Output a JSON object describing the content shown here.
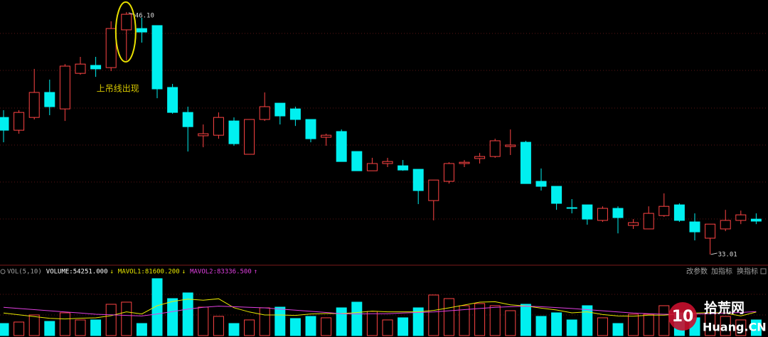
{
  "chart_data": [
    {
      "type": "candlestick",
      "open": [
        40.41,
        39.72,
        40.41,
        41.76,
        40.87,
        42.79,
        43.22,
        43.1,
        45.14,
        45.21,
        45.37,
        42.03,
        40.68,
        39.42,
        39.45,
        40.22,
        38.42,
        40.3,
        41.18,
        40.87,
        40.3,
        39.34,
        39.65,
        38.57,
        37.53,
        37.92,
        37.8,
        37.61,
        35.92,
        36.96,
        37.92,
        38.19,
        38.3,
        38.84,
        39.07,
        36.96,
        36.69,
        35.54,
        35.69,
        34.85,
        35.5,
        34.58,
        34.39,
        35.11,
        35.69,
        34.77,
        33.89,
        34.39,
        34.85,
        34.92
      ],
      "high": [
        40.8,
        40.8,
        43.03,
        42.45,
        43.29,
        43.68,
        43.68,
        45.6,
        46.1,
        45.79,
        45.37,
        42.22,
        40.99,
        40.03,
        40.68,
        40.41,
        40.3,
        41.76,
        41.18,
        40.99,
        40.3,
        39.53,
        39.76,
        38.57,
        38.23,
        38.23,
        38.11,
        37.61,
        37.03,
        37.99,
        38.11,
        38.49,
        39.26,
        39.76,
        39.15,
        37.65,
        36.69,
        36.0,
        35.69,
        35.61,
        35.61,
        34.92,
        35.61,
        36.31,
        35.77,
        35.23,
        34.65,
        35.42,
        35.38,
        35.23
      ],
      "low": [
        39.07,
        39.53,
        40.3,
        40.53,
        40.22,
        42.72,
        42.6,
        42.91,
        43.49,
        44.45,
        41.45,
        40.61,
        38.57,
        38.8,
        39.26,
        38.88,
        38.42,
        40.22,
        40.03,
        39.95,
        39.07,
        38.88,
        38.03,
        37.53,
        37.53,
        37.73,
        37.53,
        35.73,
        34.85,
        36.84,
        37.73,
        37.92,
        38.23,
        38.38,
        36.84,
        36.46,
        35.42,
        35.23,
        34.62,
        34.77,
        34.15,
        34.39,
        34.39,
        35.04,
        34.77,
        33.77,
        33.01,
        34.27,
        34.65,
        34.65
      ],
      "close": [
        39.72,
        40.68,
        41.76,
        40.99,
        43.18,
        43.29,
        43.03,
        45.21,
        45.98,
        45.02,
        41.95,
        40.68,
        39.91,
        39.53,
        40.41,
        38.99,
        40.3,
        40.99,
        40.49,
        40.3,
        39.26,
        39.45,
        38.03,
        37.53,
        37.92,
        38.03,
        37.57,
        36.46,
        37.03,
        37.92,
        37.99,
        38.3,
        39.15,
        38.92,
        36.84,
        36.69,
        35.77,
        35.5,
        34.92,
        35.5,
        35.0,
        34.73,
        35.23,
        35.61,
        34.85,
        34.23,
        34.65,
        34.85,
        35.15,
        34.81
      ],
      "ylim": [
        32.47,
        46.75
      ],
      "up_color": "#ff4444",
      "down_color": "#00f0f0",
      "annotation": "上吊线出现",
      "max_label": {
        "value": 46.1,
        "label": "46.10"
      },
      "min_label": {
        "value": 33.01,
        "label": "33.01"
      }
    },
    {
      "type": "bar",
      "title": "VOL(5,10)",
      "ylim": [
        0,
        207000
      ],
      "series": [
        {
          "name": "VOLUME:",
          "color": "#ffffff",
          "arrow": "↓",
          "last_label": {
            "value": 54251,
            "label": "54251.000"
          },
          "values": [
            41900,
            46900,
            71500,
            49300,
            78900,
            54300,
            54300,
            108500,
            115900,
            41900,
            197300,
            128200,
            148000,
            98600,
            66600,
            41900,
            54300,
            96200,
            98600,
            59200,
            66600,
            61700,
            96200,
            115900,
            83800,
            54300,
            61700,
            96200,
            140600,
            128200,
            103600,
            111000,
            103600,
            86300,
            108500,
            66600,
            78900,
            54300,
            103600,
            61700,
            41900,
            74000,
            74000,
            103600,
            78900,
            61700,
            78900,
            66600,
            54300,
            54251
          ]
        },
        {
          "name": "MAVOL1:",
          "color": "#e8e800",
          "arrow": "↓",
          "last_label": {
            "value": 81600.2,
            "label": "81600.200"
          },
          "values": [
            78000,
            72000,
            66000,
            60000,
            57700,
            60200,
            61700,
            69000,
            82400,
            75000,
            103600,
            118400,
            126300,
            122800,
            127700,
            96700,
            81900,
            71500,
            71500,
            70000,
            75000,
            76400,
            76400,
            79900,
            84800,
            82400,
            82400,
            82400,
            87300,
            96200,
            106000,
            115900,
            117400,
            106500,
            102600,
            95200,
            88800,
            78900,
            82400,
            73000,
            68100,
            67100,
            71000,
            71000,
            74500,
            78400,
            79400,
            77900,
            68100,
            81600.2
          ]
        },
        {
          "name": "MAVOL2:",
          "color": "#e040e0",
          "arrow": "↑",
          "last_label": {
            "value": 83336.5,
            "label": "83336.500"
          },
          "values": [
            98000,
            94000,
            90000,
            86000,
            82000,
            78000,
            74000,
            72000,
            70000,
            68000,
            75000,
            83000,
            92000,
            98000,
            102000,
            100000,
            98000,
            96000,
            92000,
            88000,
            84000,
            80000,
            76000,
            75000,
            76000,
            76000,
            78000,
            80000,
            82000,
            86000,
            90000,
            94000,
            98000,
            100000,
            102000,
            100000,
            97000,
            94000,
            90000,
            86000,
            82000,
            78000,
            76000,
            74000,
            74000,
            75000,
            76000,
            78000,
            80000,
            83336.5
          ]
        }
      ]
    }
  ],
  "toolbar": [
    "改参数",
    "加指标",
    "换指标"
  ],
  "watermark": {
    "number": "10",
    "name": "拾荒网",
    "site": "Huang.CN"
  }
}
